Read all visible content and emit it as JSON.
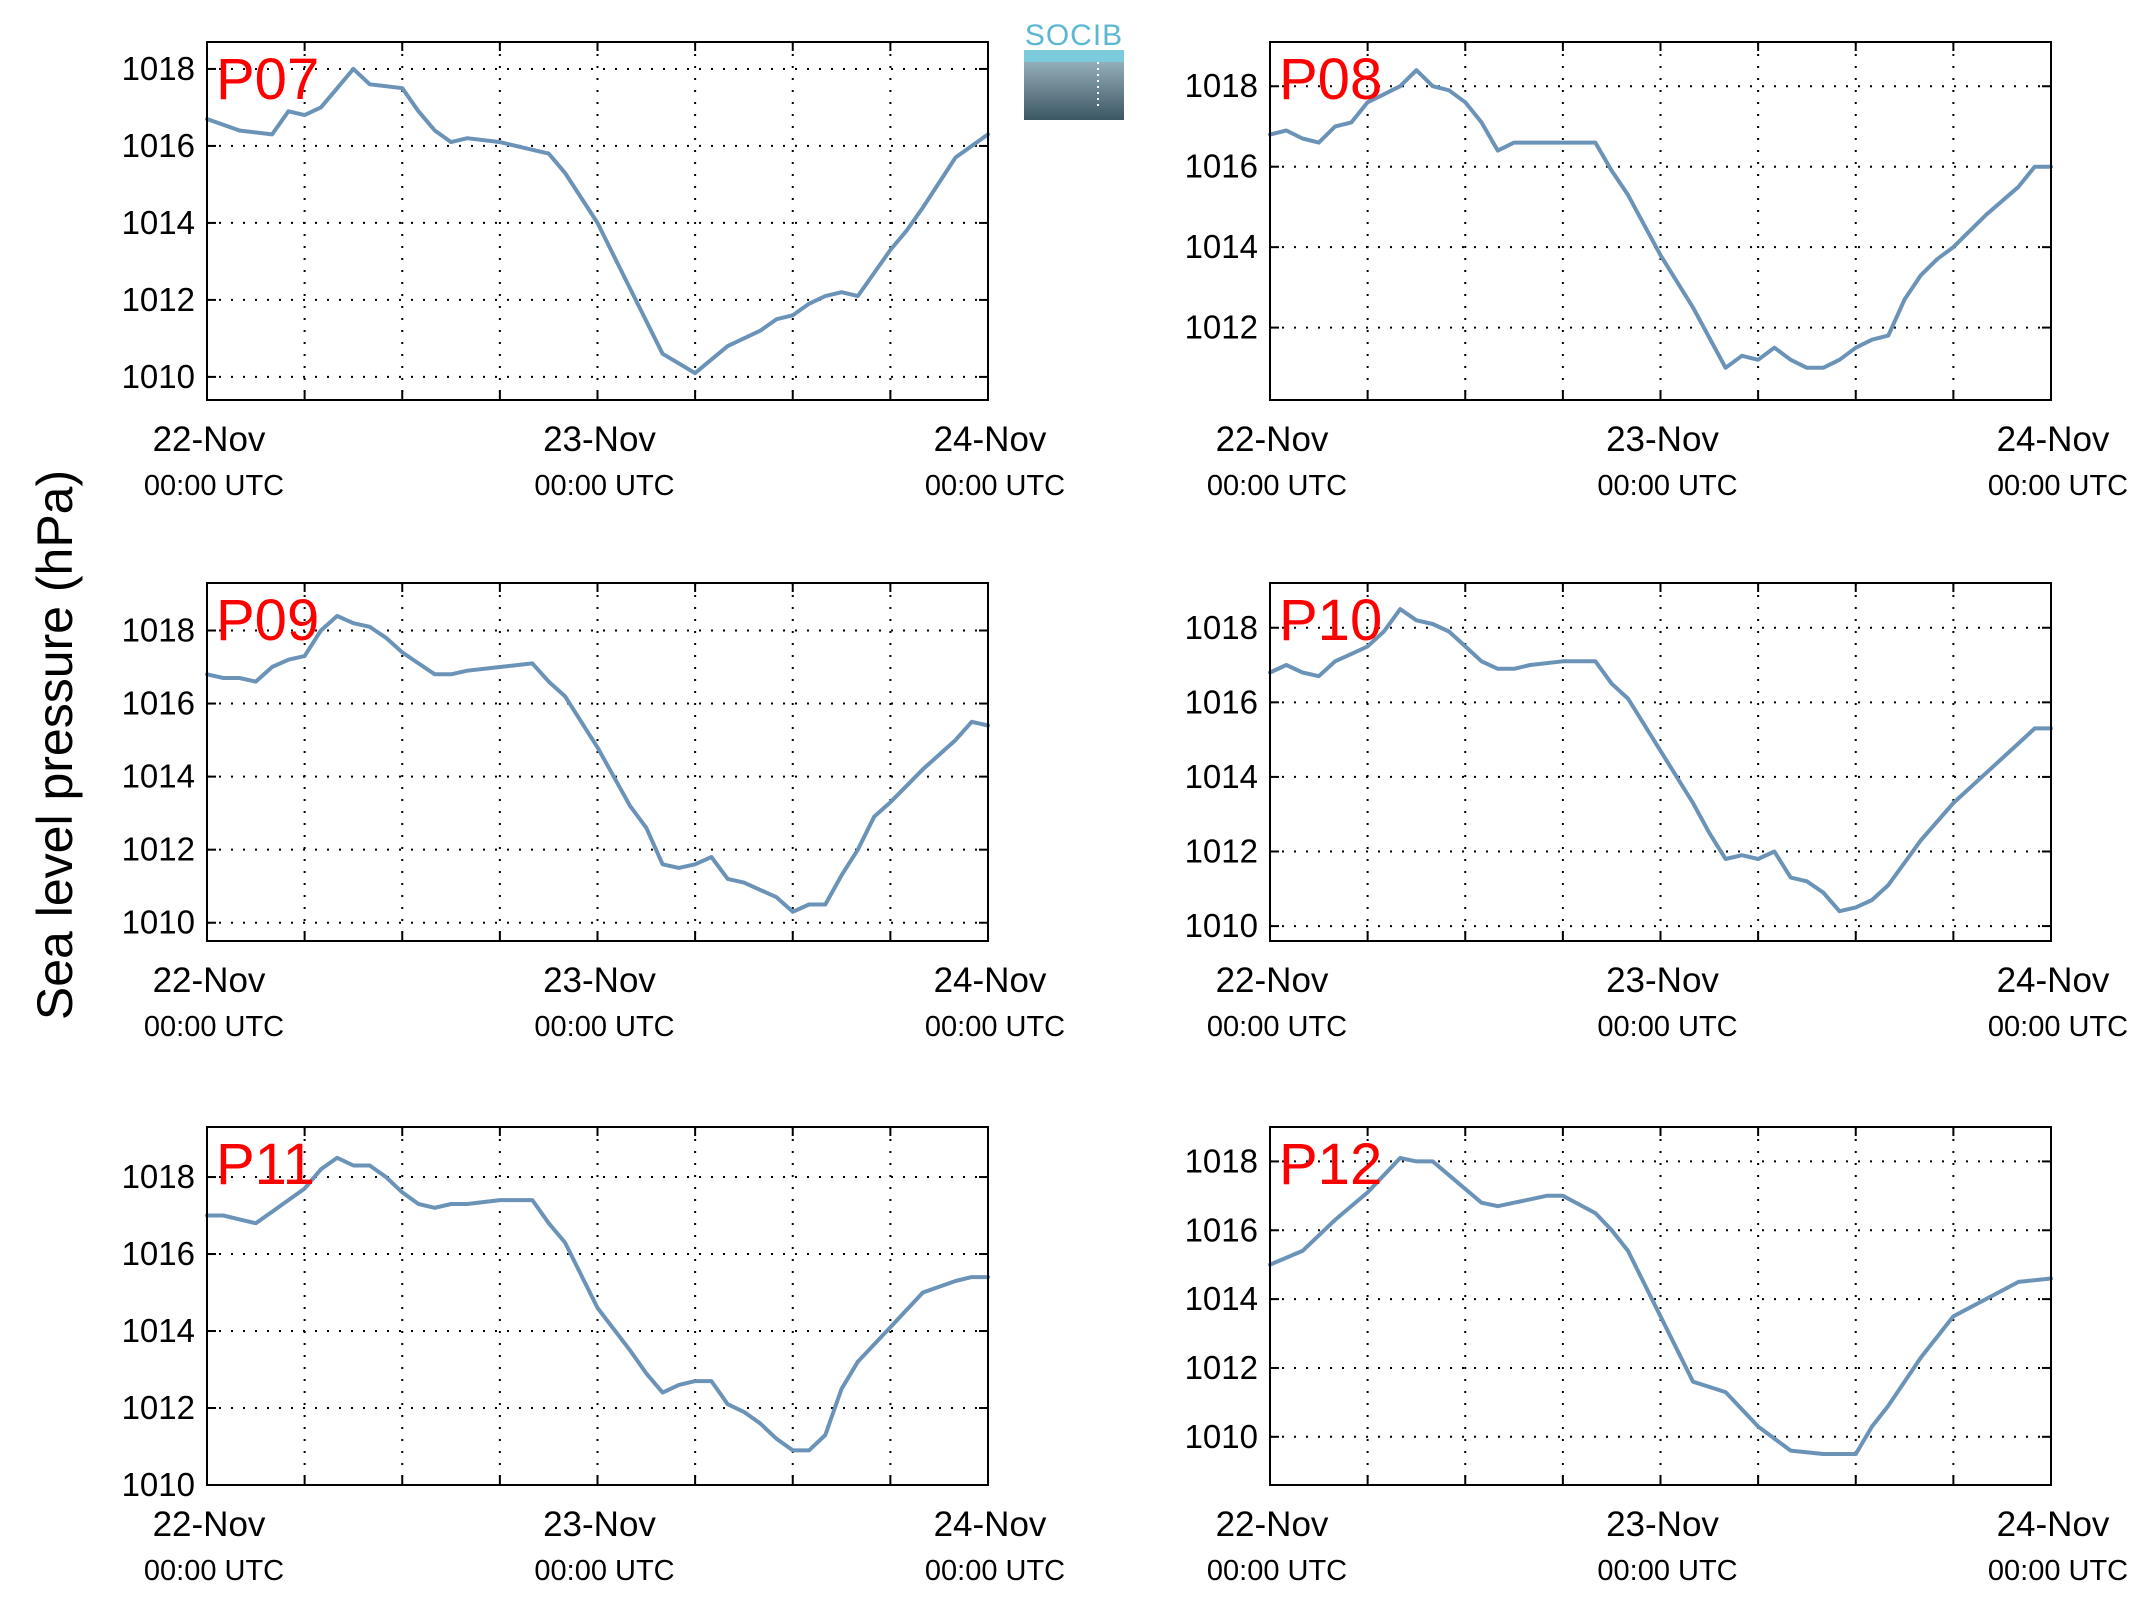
{
  "figure": {
    "ylabel": "Sea level pressure (hPa)",
    "logo_text": "SOCIB",
    "line_color": "#6b93b8",
    "label_color": "#ff0000",
    "logo_color": "#5bb8d0"
  },
  "chart_data": [
    {
      "type": "line",
      "title": "P07",
      "xlabel": "",
      "ylabel": "Sea level pressure (hPa)",
      "xlim": [
        "2015-11-22T00:00",
        "2015-11-24T00:00"
      ],
      "ylim": [
        1009.4,
        1018.7
      ],
      "yticks": [
        1010,
        1012,
        1014,
        1016,
        1018
      ],
      "xticks": [
        {
          "date": "22-Nov",
          "time": "00:00 UTC"
        },
        {
          "date": "23-Nov",
          "time": "00:00 UTC"
        },
        {
          "date": "24-Nov",
          "time": "00:00 UTC"
        }
      ],
      "grid": true,
      "series": [
        {
          "x_hours": [
            0,
            2,
            4,
            5,
            6,
            7,
            8,
            9,
            10,
            12,
            13,
            14,
            15,
            16,
            18,
            20,
            21,
            22,
            24,
            26,
            28,
            30,
            32,
            34,
            35,
            36,
            37,
            38,
            39,
            40,
            41,
            42,
            43,
            44,
            46,
            48
          ],
          "values": [
            1016.7,
            1016.4,
            1016.3,
            1016.9,
            1016.8,
            1017.0,
            1017.5,
            1018.0,
            1017.6,
            1017.5,
            1016.9,
            1016.4,
            1016.1,
            1016.2,
            1016.1,
            1015.9,
            1015.8,
            1015.3,
            1014.0,
            1012.3,
            1010.6,
            1010.1,
            1010.8,
            1011.2,
            1011.5,
            1011.6,
            1011.9,
            1012.1,
            1012.2,
            1012.1,
            1012.7,
            1013.3,
            1013.8,
            1014.4,
            1015.7,
            1016.3
          ]
        }
      ]
    },
    {
      "type": "line",
      "title": "P08",
      "xlabel": "",
      "ylabel": "Sea level pressure (hPa)",
      "xlim": [
        "2015-11-22T00:00",
        "2015-11-24T00:00"
      ],
      "ylim": [
        1010.2,
        1019.1
      ],
      "yticks": [
        1012,
        1014,
        1016,
        1018
      ],
      "xticks": [
        {
          "date": "22-Nov",
          "time": "00:00 UTC"
        },
        {
          "date": "23-Nov",
          "time": "00:00 UTC"
        },
        {
          "date": "24-Nov",
          "time": "00:00 UTC"
        }
      ],
      "grid": true,
      "series": [
        {
          "x_hours": [
            0,
            1,
            2,
            3,
            4,
            5,
            6,
            7,
            8,
            9,
            9.5,
            10,
            11,
            12,
            13,
            14,
            15,
            16,
            17,
            18,
            20,
            21,
            22,
            24,
            26,
            28,
            29,
            30,
            31,
            32,
            33,
            34,
            35,
            36,
            37,
            38,
            39,
            40,
            41,
            42,
            44,
            46,
            47,
            48
          ],
          "values": [
            1016.8,
            1016.9,
            1016.7,
            1016.6,
            1017.0,
            1017.1,
            1017.6,
            1017.8,
            1018.0,
            1018.4,
            1018.2,
            1018.0,
            1017.9,
            1017.6,
            1017.1,
            1016.4,
            1016.6,
            1016.6,
            1016.6,
            1016.6,
            1016.6,
            1015.9,
            1015.3,
            1013.8,
            1012.5,
            1011.0,
            1011.3,
            1011.2,
            1011.5,
            1011.2,
            1011.0,
            1011.0,
            1011.2,
            1011.5,
            1011.7,
            1011.8,
            1012.7,
            1013.3,
            1013.7,
            1014.0,
            1014.8,
            1015.5,
            1016.0,
            1016.0
          ]
        }
      ]
    },
    {
      "type": "line",
      "title": "P09",
      "xlabel": "",
      "ylabel": "Sea level pressure (hPa)",
      "xlim": [
        "2015-11-22T00:00",
        "2015-11-24T00:00"
      ],
      "ylim": [
        1009.5,
        1019.3
      ],
      "yticks": [
        1010,
        1012,
        1014,
        1016,
        1018
      ],
      "xticks": [
        {
          "date": "22-Nov",
          "time": "00:00 UTC"
        },
        {
          "date": "23-Nov",
          "time": "00:00 UTC"
        },
        {
          "date": "24-Nov",
          "time": "00:00 UTC"
        }
      ],
      "grid": true,
      "series": [
        {
          "x_hours": [
            0,
            1,
            2,
            3,
            4,
            5,
            6,
            7,
            8,
            9,
            10,
            11,
            12,
            13,
            14,
            15,
            16,
            18,
            20,
            21,
            22,
            24,
            26,
            27,
            28,
            29,
            30,
            31,
            32,
            33,
            34,
            35,
            36,
            37,
            38,
            39,
            40,
            41,
            42,
            44,
            46,
            47,
            48
          ],
          "values": [
            1016.8,
            1016.7,
            1016.7,
            1016.6,
            1017.0,
            1017.2,
            1017.3,
            1018.0,
            1018.4,
            1018.2,
            1018.1,
            1017.8,
            1017.4,
            1017.1,
            1016.8,
            1016.8,
            1016.9,
            1017.0,
            1017.1,
            1016.6,
            1016.2,
            1014.8,
            1013.2,
            1012.6,
            1011.6,
            1011.5,
            1011.6,
            1011.8,
            1011.2,
            1011.1,
            1010.9,
            1010.7,
            1010.3,
            1010.5,
            1010.5,
            1011.3,
            1012.0,
            1012.9,
            1013.3,
            1014.2,
            1015.0,
            1015.5,
            1015.4
          ]
        }
      ]
    },
    {
      "type": "line",
      "title": "P10",
      "xlabel": "",
      "ylabel": "Sea level pressure (hPa)",
      "xlim": [
        "2015-11-22T00:00",
        "2015-11-24T00:00"
      ],
      "ylim": [
        1009.6,
        1019.2
      ],
      "yticks": [
        1010,
        1012,
        1014,
        1016,
        1018
      ],
      "xticks": [
        {
          "date": "22-Nov",
          "time": "00:00 UTC"
        },
        {
          "date": "23-Nov",
          "time": "00:00 UTC"
        },
        {
          "date": "24-Nov",
          "time": "00:00 UTC"
        }
      ],
      "grid": true,
      "series": [
        {
          "x_hours": [
            0,
            1,
            2,
            3,
            4,
            5,
            6,
            7,
            8,
            9,
            10,
            11,
            12,
            13,
            14,
            15,
            16,
            18,
            20,
            21,
            22,
            24,
            26,
            27,
            28,
            29,
            30,
            31,
            32,
            33,
            34,
            35,
            36,
            37,
            38,
            39,
            40,
            42,
            44,
            46,
            47,
            48
          ],
          "values": [
            1016.8,
            1017.0,
            1016.8,
            1016.7,
            1017.1,
            1017.3,
            1017.5,
            1017.9,
            1018.5,
            1018.2,
            1018.1,
            1017.9,
            1017.5,
            1017.1,
            1016.9,
            1016.9,
            1017.0,
            1017.1,
            1017.1,
            1016.5,
            1016.1,
            1014.7,
            1013.3,
            1012.5,
            1011.8,
            1011.9,
            1011.8,
            1012.0,
            1011.3,
            1011.2,
            1010.9,
            1010.4,
            1010.5,
            1010.7,
            1011.1,
            1011.7,
            1012.3,
            1013.3,
            1014.1,
            1014.9,
            1015.3,
            1015.3
          ]
        }
      ]
    },
    {
      "type": "line",
      "title": "P11",
      "xlabel": "",
      "ylabel": "Sea level pressure (hPa)",
      "xlim": [
        "2015-11-22T00:00",
        "2015-11-24T00:00"
      ],
      "ylim": [
        1010,
        1019.3
      ],
      "yticks": [
        1010,
        1012,
        1014,
        1016,
        1018
      ],
      "xticks": [
        {
          "date": "22-Nov",
          "time": "00:00 UTC"
        },
        {
          "date": "23-Nov",
          "time": "00:00 UTC"
        },
        {
          "date": "24-Nov",
          "time": "00:00 UTC"
        }
      ],
      "grid": true,
      "series": [
        {
          "x_hours": [
            0,
            1,
            2,
            3,
            4,
            5,
            6,
            7,
            8,
            9,
            10,
            11,
            12,
            13,
            14,
            15,
            16,
            18,
            20,
            21,
            22,
            24,
            26,
            27,
            28,
            29,
            30,
            31,
            32,
            33,
            34,
            35,
            36,
            37,
            38,
            39,
            40,
            42,
            44,
            46,
            47,
            48
          ],
          "values": [
            1017.0,
            1017.0,
            1016.9,
            1016.8,
            1017.1,
            1017.4,
            1017.7,
            1018.2,
            1018.5,
            1018.3,
            1018.3,
            1018.0,
            1017.6,
            1017.3,
            1017.2,
            1017.3,
            1017.3,
            1017.4,
            1017.4,
            1016.8,
            1016.3,
            1014.6,
            1013.5,
            1012.9,
            1012.4,
            1012.6,
            1012.7,
            1012.7,
            1012.1,
            1011.9,
            1011.6,
            1011.2,
            1010.9,
            1010.9,
            1011.3,
            1012.5,
            1013.2,
            1014.1,
            1015.0,
            1015.3,
            1015.4,
            1015.4
          ]
        }
      ]
    },
    {
      "type": "line",
      "title": "P12",
      "xlabel": "",
      "ylabel": "Sea level pressure (hPa)",
      "xlim": [
        "2015-11-22T00:00",
        "2015-11-24T00:00"
      ],
      "ylim": [
        1008.6,
        1019.0
      ],
      "yticks": [
        1010,
        1012,
        1014,
        1016,
        1018
      ],
      "xticks": [
        {
          "date": "22-Nov",
          "time": "00:00 UTC"
        },
        {
          "date": "23-Nov",
          "time": "00:00 UTC"
        },
        {
          "date": "24-Nov",
          "time": "00:00 UTC"
        }
      ],
      "grid": true,
      "series": [
        {
          "x_hours": [
            0,
            2,
            4,
            6,
            8,
            9,
            10,
            11,
            12,
            13,
            14,
            15,
            16,
            17,
            18,
            20,
            21,
            22,
            24,
            26,
            28,
            30,
            32,
            34,
            35,
            36,
            37,
            38,
            40,
            42,
            44,
            46,
            48
          ],
          "values": [
            1015.0,
            1015.4,
            1016.3,
            1017.1,
            1018.1,
            1018.0,
            1018.0,
            1017.6,
            1017.2,
            1016.8,
            1016.7,
            1016.8,
            1016.9,
            1017.0,
            1017.0,
            1016.5,
            1016.0,
            1015.4,
            1013.5,
            1011.6,
            1011.3,
            1010.3,
            1009.6,
            1009.5,
            1009.5,
            1009.5,
            1010.3,
            1010.9,
            1012.3,
            1013.5,
            1014.0,
            1014.5,
            1014.6
          ]
        }
      ]
    }
  ]
}
